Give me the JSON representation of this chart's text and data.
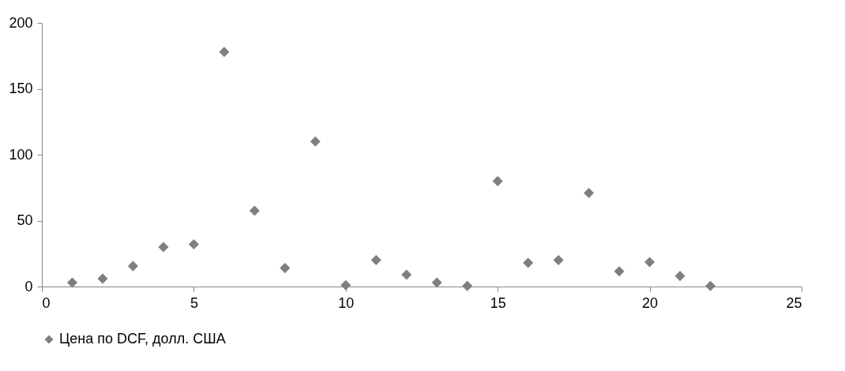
{
  "chart_data": {
    "type": "scatter",
    "x": [
      1,
      2,
      3,
      4,
      5,
      6,
      7,
      8,
      9,
      10,
      11,
      12,
      13,
      14,
      15,
      16,
      17,
      18,
      19,
      20,
      21,
      22
    ],
    "series": [
      {
        "name": "Цена по DCF, долл. США",
        "color": "#7f7f7f",
        "values": [
          3,
          6,
          15.5,
          30,
          32,
          178,
          57.5,
          14,
          110,
          1,
          20,
          9,
          3,
          0.5,
          80,
          18,
          20,
          71,
          11.5,
          18.5,
          8,
          0.5
        ]
      }
    ],
    "xlim": [
      0,
      25
    ],
    "xticks": [
      0,
      5,
      10,
      15,
      20,
      25
    ],
    "ylim": [
      0,
      200
    ],
    "yticks": [
      0,
      50,
      100,
      150,
      200
    ],
    "grid": false,
    "legend": "bottom",
    "marker": "diamond"
  }
}
